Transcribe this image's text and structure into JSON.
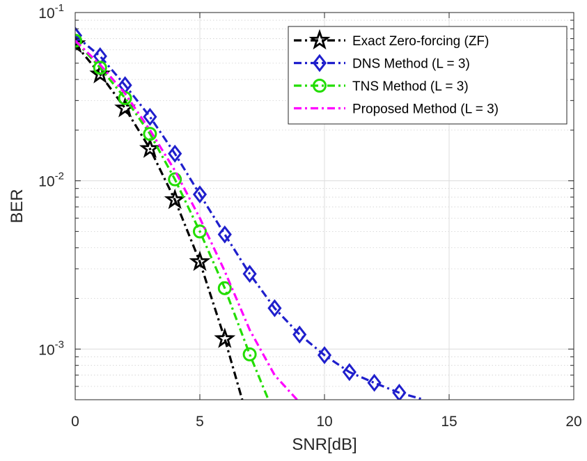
{
  "chart_data": {
    "type": "line",
    "title": "",
    "xlabel": "SNR[dB]",
    "ylabel": "BER",
    "xlim": [
      0,
      20
    ],
    "ylim": [
      0.0005,
      0.1
    ],
    "yscale": "log",
    "grid": true,
    "minor_grid": true,
    "legend_position": "top-right",
    "x_ticks": [
      0,
      5,
      10,
      15,
      20
    ],
    "y_ticks": [
      {
        "value": 0.1,
        "base": "10",
        "exp": "-1"
      },
      {
        "value": 0.01,
        "base": "10",
        "exp": "-2"
      },
      {
        "value": 0.001,
        "base": "10",
        "exp": "-3"
      }
    ],
    "series": [
      {
        "name": "Exact  Zero-forcing  (ZF)",
        "color": "#000000",
        "dash": "dashdot",
        "marker": "star",
        "x": [
          0,
          1,
          2,
          3,
          4,
          5,
          6,
          6.7
        ],
        "y": [
          0.065,
          0.043,
          0.027,
          0.0155,
          0.0077,
          0.0033,
          0.00115,
          0.0005
        ]
      },
      {
        "name": "DNS Method (L = 3)",
        "color": "#1f1fcc",
        "dash": "dashdot",
        "marker": "diamond",
        "x": [
          0,
          1,
          2,
          3,
          4,
          5,
          6,
          7,
          8,
          9,
          10,
          11,
          12,
          13,
          14
        ],
        "y": [
          0.073,
          0.055,
          0.037,
          0.024,
          0.0145,
          0.0083,
          0.0048,
          0.0028,
          0.00175,
          0.00122,
          0.00092,
          0.00073,
          0.00063,
          0.00055,
          0.0005
        ]
      },
      {
        "name": "TNS Method (L = 3)",
        "color": "#22dd00",
        "dash": "dashdot",
        "marker": "circle",
        "x": [
          0,
          1,
          2,
          3,
          4,
          5,
          6,
          7,
          7.75
        ],
        "y": [
          0.068,
          0.047,
          0.031,
          0.019,
          0.0102,
          0.005,
          0.0023,
          0.00093,
          0.0005
        ]
      },
      {
        "name": "Proposed Method (L = 3)",
        "color": "#ff00ff",
        "dash": "dashdot",
        "marker": "none",
        "x": [
          0,
          1,
          2,
          3,
          4,
          5,
          6,
          7,
          8,
          8.9
        ],
        "y": [
          0.068,
          0.049,
          0.033,
          0.02,
          0.0115,
          0.006,
          0.0029,
          0.0013,
          0.0007,
          0.0005
        ]
      }
    ]
  }
}
